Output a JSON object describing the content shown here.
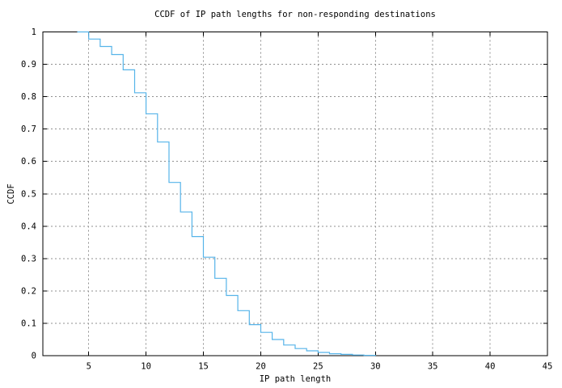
{
  "chart_data": {
    "type": "line",
    "line_style": "steps-post",
    "title": "CCDF of IP path lengths for non-responding destinations",
    "xlabel": "IP path length",
    "ylabel": "CCDF",
    "xlim": [
      1,
      45
    ],
    "ylim": [
      0,
      1
    ],
    "grid": true,
    "legend": "none",
    "colors": {
      "line": "#56B4E9",
      "grid": "#909090",
      "axis": "#000000",
      "text": "#000000",
      "background": "#FFFFFF"
    },
    "xticks": {
      "values": [
        5,
        10,
        15,
        20,
        25,
        30,
        35,
        40,
        45
      ],
      "labels": [
        "5",
        "10",
        "15",
        "20",
        "25",
        "30",
        "35",
        "40",
        "45"
      ]
    },
    "yticks": {
      "values": [
        0,
        0.1,
        0.2,
        0.3,
        0.4,
        0.5,
        0.6,
        0.7,
        0.8,
        0.9,
        1
      ],
      "labels": [
        "0",
        "0.1",
        "0.2",
        "0.3",
        "0.4",
        "0.5",
        "0.6",
        "0.7",
        "0.8",
        "0.9",
        "1"
      ]
    },
    "series": [
      {
        "name": "CCDF",
        "x": [
          4,
          5,
          6,
          7,
          8,
          9,
          10,
          11,
          12,
          13,
          14,
          15,
          16,
          17,
          18,
          19,
          20,
          21,
          22,
          23,
          24,
          25,
          26,
          27,
          28,
          29,
          30
        ],
        "y": [
          1.0,
          0.978,
          0.955,
          0.93,
          0.883,
          0.812,
          0.747,
          0.66,
          0.535,
          0.444,
          0.368,
          0.304,
          0.239,
          0.186,
          0.139,
          0.096,
          0.072,
          0.05,
          0.033,
          0.022,
          0.015,
          0.01,
          0.006,
          0.004,
          0.002,
          0.001,
          0.0
        ]
      }
    ]
  }
}
